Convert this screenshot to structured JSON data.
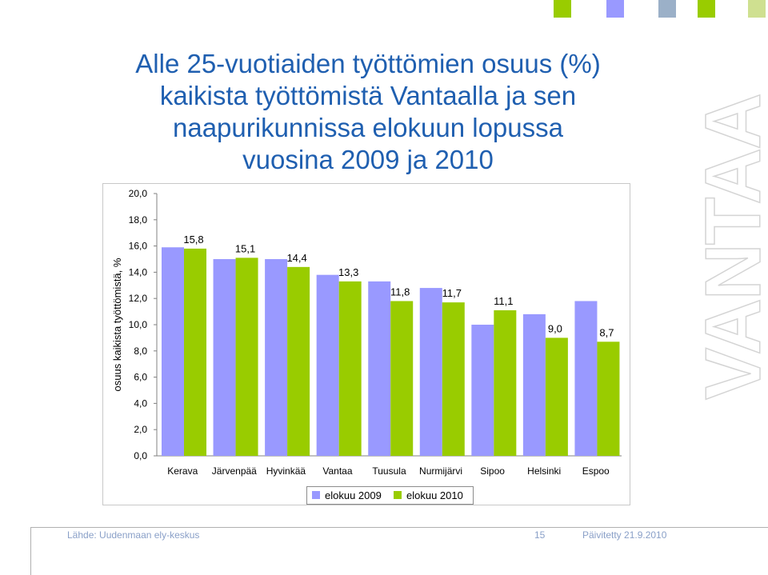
{
  "title_lines": [
    "Alle 25-vuotiaiden työttömien osuus (%)",
    "kaikista työttömistä Vantaalla ja sen",
    "naapurikunnissa elokuun lopussa",
    "vuosina 2009 ja 2010"
  ],
  "chart_data": {
    "type": "bar",
    "categories": [
      "Kerava",
      "Järvenpää",
      "Hyvinkää",
      "Vantaa",
      "Tuusula",
      "Nurmijärvi",
      "Sipoo",
      "Helsinki",
      "Espoo"
    ],
    "series": [
      {
        "name": "elokuu 2009",
        "values": [
          15.9,
          15.0,
          15.0,
          13.8,
          13.3,
          12.8,
          10.0,
          10.8,
          11.8
        ],
        "color": "#9999ff"
      },
      {
        "name": "elokuu 2010",
        "values": [
          15.8,
          15.1,
          14.4,
          13.3,
          11.8,
          11.7,
          11.1,
          9.0,
          8.7
        ],
        "color": "#99cc00"
      }
    ],
    "data_labels": [
      "15,8",
      "15,1",
      "14,4",
      "13,3",
      "11,8",
      "11,7",
      "11,1",
      "9,0",
      "8,7"
    ],
    "ylabel": "osuus kaikista työttömistä, %",
    "ylim": [
      0,
      20
    ],
    "yticks": [
      "0,0",
      "2,0",
      "4,0",
      "6,0",
      "8,0",
      "10,0",
      "12,0",
      "14,0",
      "16,0",
      "18,0",
      "20,0"
    ],
    "grid": false,
    "legend_position": "bottom"
  },
  "footer": {
    "source": "Lähde: Uudenmaan ely-keskus",
    "page": "15",
    "updated": "Päivitetty 21.9.2010"
  },
  "watermark": "VANTAA",
  "colors": {
    "title": "#1f5fb0",
    "squares": [
      "#99cc00",
      "#9999ff",
      "#9bb0c8",
      "#99cc00",
      "#cfe090"
    ]
  }
}
